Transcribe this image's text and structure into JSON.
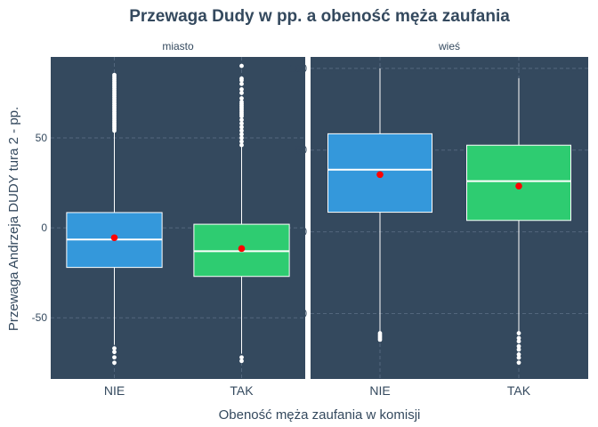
{
  "chart_data": {
    "type": "box",
    "title": "Przewaga Dudy w pp. a obeność męża zaufania",
    "xlabel": "Obeność męża zaufania w komisji",
    "ylabel": "Przewaga Andrzeja DUDY tura 2 - pp.",
    "categories": [
      "NIE",
      "TAK"
    ],
    "panel_background": "#34495e",
    "grid": true,
    "legend": "none",
    "mean_marker_color": "#ff0000",
    "panels": [
      {
        "name": "miasto",
        "ylim": [
          -84,
          95
        ],
        "yticks": [
          -50,
          0,
          50
        ],
        "boxes": [
          {
            "category": "NIE",
            "color": "#3498db",
            "whisker_low": -65,
            "q1": -22,
            "median": -6.5,
            "q3": 8.5,
            "whisker_high": 53,
            "mean": -5.5,
            "outliers": [
              54,
              55,
              56,
              57,
              58,
              59,
              60,
              61,
              62,
              63,
              64,
              65,
              66,
              67,
              68,
              69,
              70,
              71,
              72,
              73,
              74,
              75,
              76,
              77,
              78,
              79,
              80,
              81,
              82,
              83,
              84,
              85,
              -67,
              -69,
              -72,
              -75
            ]
          },
          {
            "category": "TAK",
            "color": "#2ecc71",
            "whisker_low": -70,
            "q1": -27,
            "median": -13,
            "q3": 2,
            "whisker_high": 45,
            "mean": -11.5,
            "outliers": [
              46,
              48,
              50,
              52,
              54,
              56,
              58,
              60,
              62,
              63,
              64,
              65,
              66,
              67,
              68,
              69,
              70,
              72,
              75,
              77,
              80,
              82,
              83,
              90,
              -72,
              -74
            ]
          }
        ]
      },
      {
        "name": "wieś",
        "ylim": [
          -90,
          107
        ],
        "yticks": [
          -50,
          0,
          50,
          100
        ],
        "boxes": [
          {
            "category": "NIE",
            "color": "#3498db",
            "whisker_low": -61,
            "q1": 12,
            "median": 38,
            "q3": 60,
            "whisker_high": 100,
            "mean": 35,
            "outliers": [
              -62,
              -63,
              -64,
              -65,
              -66
            ]
          },
          {
            "category": "TAK",
            "color": "#2ecc71",
            "whisker_low": -61,
            "q1": 7,
            "median": 31,
            "q3": 53,
            "whisker_high": 94,
            "mean": 28,
            "outliers": [
              -62,
              -65,
              -67,
              -70,
              -72,
              -75,
              -77,
              -80
            ]
          }
        ]
      }
    ]
  }
}
